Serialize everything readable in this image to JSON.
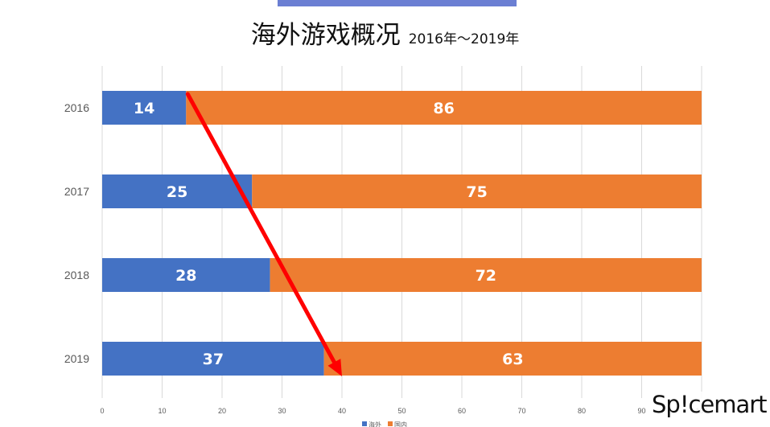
{
  "title": "海外游戏概况",
  "subtitle": "2016年～2019年",
  "logo_text": "Sp!cemart",
  "colors": {
    "overseas": "#4472c4",
    "domestic": "#ed7d31",
    "arrow": "#ff0000",
    "grid": "#d9d9d9",
    "top_bar": "#6b7fd3"
  },
  "chart_data": {
    "type": "bar",
    "orientation": "horizontal",
    "stacked": true,
    "categories": [
      "2016",
      "2017",
      "2018",
      "2019"
    ],
    "series": [
      {
        "name": "海外",
        "values": [
          14,
          25,
          28,
          37
        ]
      },
      {
        "name": "国内",
        "values": [
          86,
          75,
          72,
          63
        ]
      }
    ],
    "xticks": [
      0,
      10,
      20,
      30,
      40,
      50,
      60,
      70,
      80,
      90,
      100
    ],
    "xlim": [
      0,
      100
    ],
    "grid": true,
    "legend_position": "bottom",
    "annotation": {
      "type": "arrow",
      "from": {
        "x": 14,
        "category": "2016"
      },
      "to": {
        "x": 40,
        "category": "2019"
      }
    }
  }
}
